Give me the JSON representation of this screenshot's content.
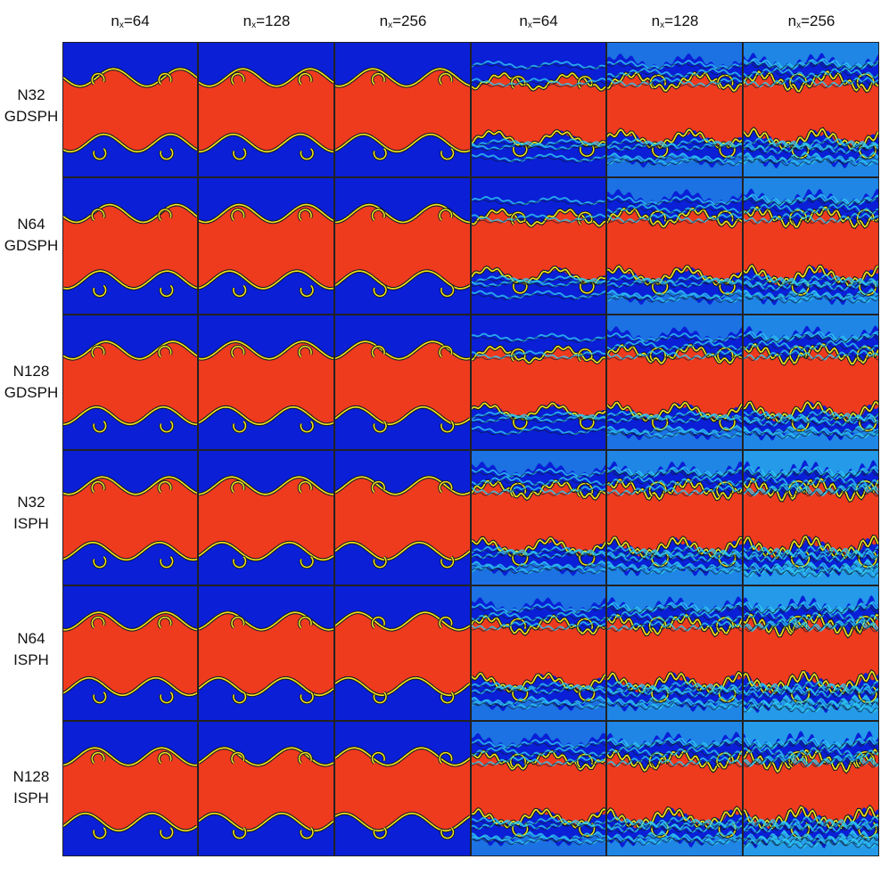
{
  "columns": [
    {
      "base": "n",
      "sub": "x",
      "value": "=64"
    },
    {
      "base": "n",
      "sub": "x",
      "value": "=128"
    },
    {
      "base": "n",
      "sub": "x",
      "value": "=256"
    },
    {
      "base": "n",
      "sub": "x",
      "value": "=64"
    },
    {
      "base": "n",
      "sub": "x",
      "value": "=128"
    },
    {
      "base": "n",
      "sub": "x",
      "value": "=256"
    }
  ],
  "rows": [
    {
      "line1": "N32",
      "line2": "GDSPH"
    },
    {
      "line1": "N64",
      "line2": "GDSPH"
    },
    {
      "line1": "N128",
      "line2": "GDSPH"
    },
    {
      "line1": "N32",
      "line2": "ISPH"
    },
    {
      "line1": "N64",
      "line2": "ISPH"
    },
    {
      "line1": "N128",
      "line2": "ISPH"
    }
  ],
  "colors": {
    "background_fluid": "#0a1fd6",
    "band_fluid": "#ee3b1e",
    "interface": "#f3e21a",
    "mixed": "#2ec8f0",
    "edge": "#0b1a2a"
  }
}
